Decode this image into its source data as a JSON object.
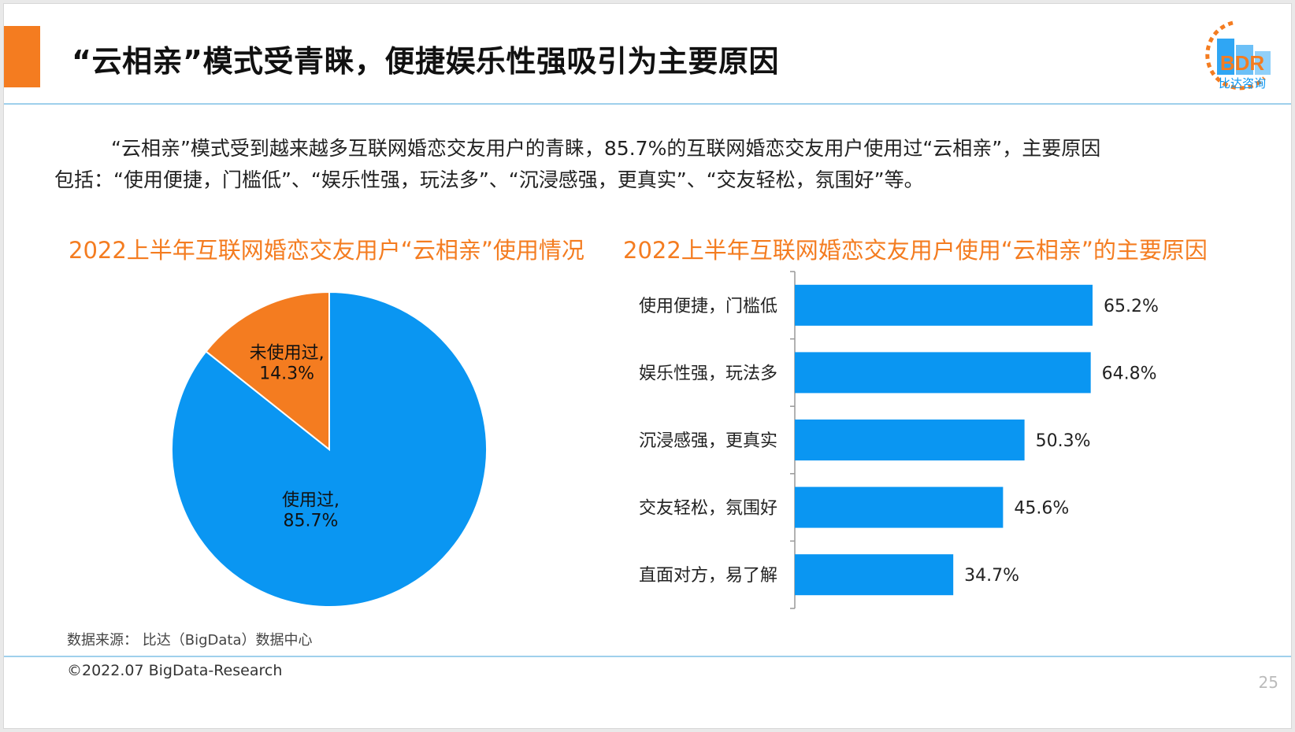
{
  "title": "“云相亲”模式受青睐，便捷娱乐性强吸引为主要原因",
  "logo": {
    "text": "BDR",
    "subtext": "比达咨询"
  },
  "intro": {
    "line1": "“云相亲”模式受到越来越多互联网婚恋交友用户的青睐，85.7%的互联网婚恋交友用户使用过“云相亲”，主要原因",
    "line2": "包括：“使用便捷，门槛低”、“娱乐性强，玩法多”、“沉浸感强，更真实”、“交友轻松，氛围好”等。"
  },
  "colors": {
    "orange": "#f47c20",
    "blue": "#0a96f2",
    "rule": "#9fd0ec"
  },
  "chart_data": [
    {
      "type": "pie",
      "title": "2022上半年互联网婚恋交友用户“云相亲”使用情况",
      "slices": [
        {
          "label": "使用过,",
          "value": 85.7,
          "value_label": "85.7%",
          "color": "#0a96f2"
        },
        {
          "label": "未使用过,",
          "value": 14.3,
          "value_label": "14.3%",
          "color": "#f47c20"
        }
      ]
    },
    {
      "type": "bar",
      "orientation": "horizontal",
      "title": "2022上半年互联网婚恋交友用户使用“云相亲”的主要原因",
      "categories": [
        "使用便捷，门槛低",
        "娱乐性强，玩法多",
        "沉浸感强，更真实",
        "交友轻松，氛围好",
        "直面对方，易了解"
      ],
      "values": [
        65.2,
        64.8,
        50.3,
        45.6,
        34.7
      ],
      "value_labels": [
        "65.2%",
        "64.8%",
        "50.3%",
        "45.6%",
        "34.7%"
      ],
      "color": "#0a96f2"
    }
  ],
  "source": "数据来源：  比达（BigData）数据中心",
  "copyright": "©2022.07 BigData-Research",
  "page_number": "25"
}
